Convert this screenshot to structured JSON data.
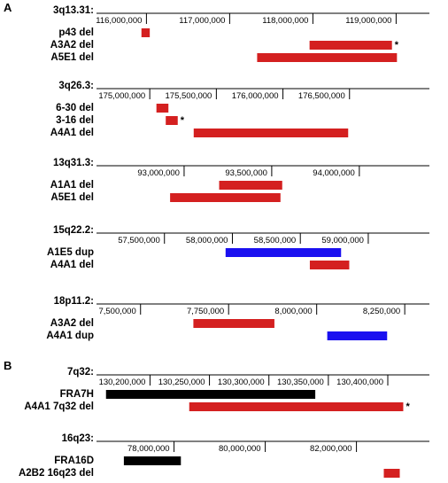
{
  "panels": [
    {
      "letter": "A",
      "tracks": [
        {
          "region": "3q13.31:",
          "axis": {
            "min": 115400000,
            "max": 119400000,
            "ticks": [
              116000000,
              117000000,
              118000000,
              119000000
            ],
            "tick_labels": [
              "116,000,000",
              "117,000,000",
              "118,000,000",
              "119,000,000"
            ]
          },
          "features": [
            {
              "label": "p43 del",
              "start": 115940000,
              "end": 116040000,
              "color": "#d42020",
              "star": false
            },
            {
              "label": "A3A2 del",
              "start": 117960000,
              "end": 118950000,
              "color": "#d42020",
              "star": true
            },
            {
              "label": "A5E1 del",
              "start": 117330000,
              "end": 119010000,
              "color": "#d42020",
              "star": false
            }
          ]
        },
        {
          "region": "3q26.3:",
          "axis": {
            "min": 174600000,
            "max": 177100000,
            "ticks": [
              175000000,
              175500000,
              176000000,
              176500000
            ],
            "tick_labels": [
              "175,000,000",
              "175,500,000",
              "176,000,000",
              "176,500,000"
            ]
          },
          "features": [
            {
              "label": "6-30 del",
              "start": 175050000,
              "end": 175140000,
              "color": "#d42020",
              "star": false
            },
            {
              "label": "3-16 del",
              "start": 175120000,
              "end": 175210000,
              "color": "#d42020",
              "star": true
            },
            {
              "label": "A4A1 del",
              "start": 175330000,
              "end": 176490000,
              "color": "#d42020",
              "star": false
            }
          ]
        },
        {
          "region": "13q31.3:",
          "axis": {
            "min": 92500000,
            "max": 94400000,
            "ticks": [
              93000000,
              93500000,
              94000000
            ],
            "tick_labels": [
              "93,000,000",
              "93,500,000",
              "94,000,000"
            ]
          },
          "features": [
            {
              "label": "A1A1 del",
              "start": 93200000,
              "end": 93560000,
              "color": "#d42020",
              "star": false
            },
            {
              "label": "A5E1 del",
              "start": 92920000,
              "end": 93550000,
              "color": "#d42020",
              "star": false
            }
          ]
        },
        {
          "region": "15q22.2:",
          "axis": {
            "min": 57000000,
            "max": 59450000,
            "ticks": [
              57500000,
              58000000,
              58500000,
              59000000
            ],
            "tick_labels": [
              "57,500,000",
              "58,000,000",
              "58,500,000",
              "59,000,000"
            ]
          },
          "features": [
            {
              "label": "A1E5 dup",
              "start": 57950000,
              "end": 58800000,
              "color": "#1a10f0",
              "star": false
            },
            {
              "label": "A4A1 del",
              "start": 58570000,
              "end": 58860000,
              "color": "#d42020",
              "star": false
            }
          ]
        },
        {
          "region": "18p11.2:",
          "axis": {
            "min": 7375000,
            "max": 8320000,
            "ticks": [
              7500000,
              7750000,
              8000000,
              8250000
            ],
            "tick_labels": [
              "7,500,000",
              "7,750,000",
              "8,000,000",
              "8,250,000"
            ]
          },
          "features": [
            {
              "label": "A3A2 del",
              "start": 7650000,
              "end": 7880000,
              "color": "#d42020",
              "star": false
            },
            {
              "label": "A4A1 dup",
              "start": 8030000,
              "end": 8200000,
              "color": "#1a10f0",
              "star": false
            }
          ]
        }
      ]
    },
    {
      "letter": "B",
      "tracks": [
        {
          "region": "7q32:",
          "axis": {
            "min": 130155000,
            "max": 130435000,
            "ticks": [
              130200000,
              130250000,
              130300000,
              130350000,
              130400000
            ],
            "tick_labels": [
              "130,200,000",
              "130,250,000",
              "130,300,000",
              "130,350,000",
              "130,400,000"
            ]
          },
          "features": [
            {
              "label": "FRA7H",
              "start": 130163000,
              "end": 130339000,
              "color": "#000000",
              "star": false
            },
            {
              "label": "A4A1 7q32 del",
              "start": 130233000,
              "end": 130413000,
              "color": "#d42020",
              "star": true
            }
          ]
        },
        {
          "region": "16q23:",
          "axis": {
            "min": 76300000,
            "max": 83600000,
            "ticks": [
              78000000,
              80000000,
              82000000
            ],
            "tick_labels": [
              "78,000,000",
              "80,000,000",
              "82,000,000"
            ]
          },
          "features": [
            {
              "label": "FRA16D",
              "start": 76900000,
              "end": 78150000,
              "color": "#000000",
              "star": false
            },
            {
              "label": "A2B2 16q23 del",
              "start": 82600000,
              "end": 82950000,
              "color": "#d42020",
              "star": false
            }
          ]
        }
      ]
    }
  ]
}
